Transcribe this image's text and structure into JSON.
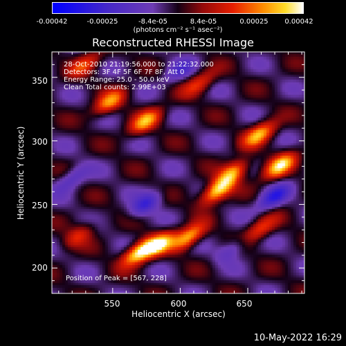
{
  "colorbar": {
    "ticks": [
      "-0.00042",
      "-0.00025",
      "-8.4e-05",
      "8.4e-05",
      "0.00025",
      "0.00042"
    ],
    "unit": "(photons cm⁻² s⁻¹ asec⁻²)"
  },
  "title": "Reconstructed RHESSI Image",
  "info": {
    "line1": "28-Oct-2010 21:19:56.000 to 21:22:32.000",
    "line2": "Detectors: 3F 4F 5F 6F 7F 8F, Att 0",
    "line3": "Energy Range: 25.0 - 50.0 keV",
    "line4": "Clean     Total counts: 2.99E+03"
  },
  "peak_label": "Position of Peak = [567, 228]",
  "axes": {
    "x_ticks": [
      "550",
      "600",
      "650"
    ],
    "y_ticks": [
      "350",
      "300",
      "250",
      "200"
    ],
    "xlabel": "Heliocentric X (arcsec)",
    "ylabel": "Heliocentric Y (arcsec)"
  },
  "datestamp": "10-May-2022 16:29",
  "chart_data": {
    "type": "heatmap",
    "title": "Reconstructed RHESSI Image",
    "xlabel": "Heliocentric X (arcsec)",
    "ylabel": "Heliocentric Y (arcsec)",
    "xlim": [
      505,
      692
    ],
    "ylim": [
      180,
      370
    ],
    "x_ticks": [
      550,
      600,
      650
    ],
    "y_ticks": [
      200,
      250,
      300,
      350
    ],
    "colorbar_range": [
      -0.00042,
      0.00042
    ],
    "colorbar_ticks": [
      -0.00042,
      -0.00025,
      -8.4e-05,
      8.4e-05,
      0.00025,
      0.00042
    ],
    "colorbar_unit": "(photons cm⁻² s⁻¹ asec⁻²)",
    "colormap": "blue-purple-red-orange-yellow-white",
    "peak_position": [
      567,
      228
    ],
    "bright_features": [
      {
        "x": 570,
        "y": 212,
        "level": 1.0
      },
      {
        "x": 585,
        "y": 218,
        "level": 0.85
      },
      {
        "x": 607,
        "y": 224,
        "level": 0.85
      },
      {
        "x": 628,
        "y": 260,
        "level": 0.95
      },
      {
        "x": 640,
        "y": 275,
        "level": 0.8
      },
      {
        "x": 675,
        "y": 280,
        "level": 0.9
      },
      {
        "x": 660,
        "y": 305,
        "level": 0.8
      },
      {
        "x": 575,
        "y": 315,
        "level": 0.75
      },
      {
        "x": 548,
        "y": 330,
        "level": 0.7
      },
      {
        "x": 660,
        "y": 230,
        "level": 0.55
      },
      {
        "x": 525,
        "y": 225,
        "level": 0.45
      },
      {
        "x": 615,
        "y": 345,
        "level": 0.5
      },
      {
        "x": 530,
        "y": 360,
        "level": 0.5
      }
    ],
    "dim_features": [
      {
        "x": 520,
        "y": 270,
        "level": -0.4
      },
      {
        "x": 575,
        "y": 250,
        "level": -0.55
      },
      {
        "x": 670,
        "y": 255,
        "level": -0.6
      },
      {
        "x": 600,
        "y": 355,
        "level": -0.35
      },
      {
        "x": 640,
        "y": 215,
        "level": -0.35
      }
    ]
  }
}
